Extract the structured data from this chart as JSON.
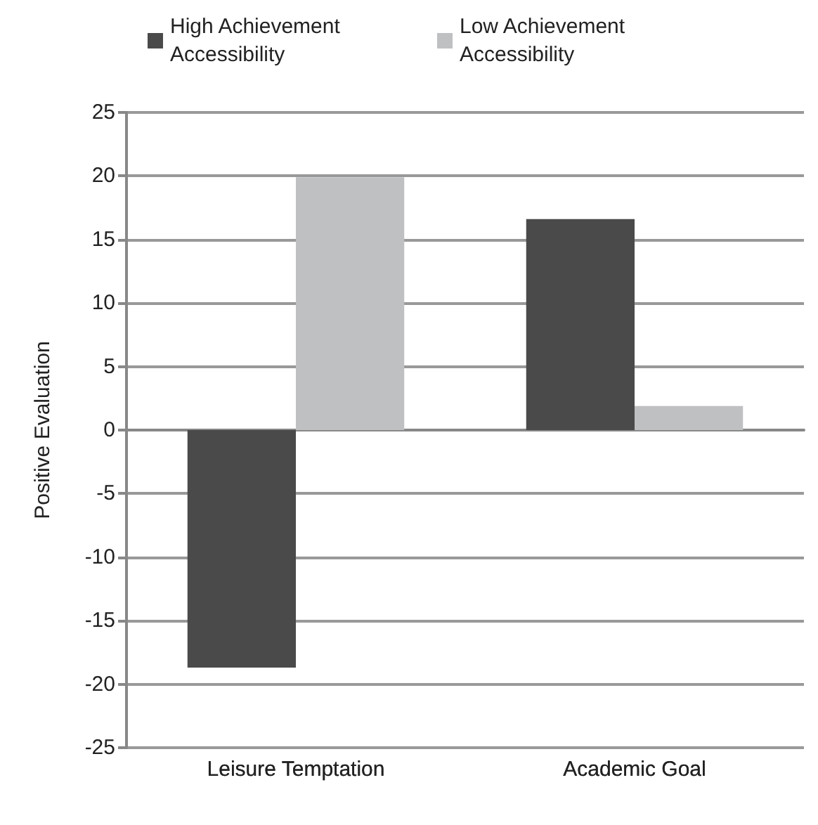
{
  "chart_data": {
    "type": "bar",
    "ylabel": "Positive Evaluation",
    "categories": [
      "Leisure Temptation",
      "Academic Goal"
    ],
    "series": [
      {
        "name": "High Achievement Accessibility",
        "color": "#4a4a4a",
        "values": [
          -18.7,
          16.6
        ]
      },
      {
        "name": "Low Achievement Accessibility",
        "color": "#bfc0c2",
        "values": [
          19.9,
          1.9
        ]
      }
    ],
    "ylim": [
      -25,
      25
    ],
    "yticks": [
      -25,
      -20,
      -15,
      -10,
      -5,
      0,
      5,
      10,
      15,
      20,
      25
    ],
    "grid": "y",
    "legend": "top"
  }
}
